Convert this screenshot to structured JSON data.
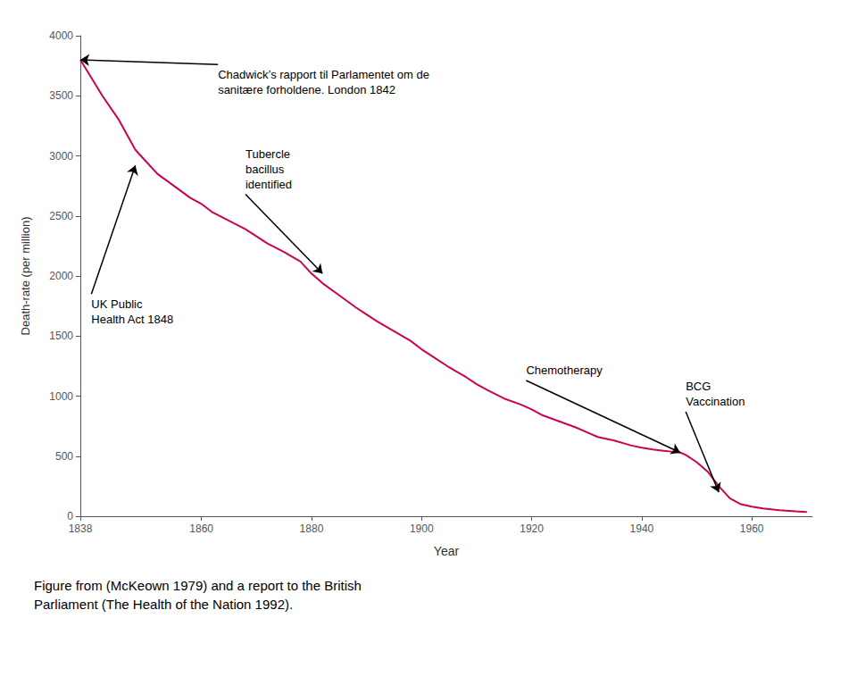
{
  "chart_data": {
    "type": "line",
    "xlabel": "Year",
    "ylabel": "Death-rate (per million)",
    "caption": "Figure from (McKeown 1979) and a report to the British\nParliament (The Health of the Nation 1992).",
    "color": "#cc0055",
    "grid": false,
    "xlim": [
      1838,
      1971
    ],
    "ylim": [
      0,
      4000
    ],
    "xticks": [
      1838,
      1860,
      1880,
      1900,
      1920,
      1940,
      1960
    ],
    "yticks": [
      0,
      500,
      1000,
      1500,
      2000,
      2500,
      3000,
      3500,
      4000
    ],
    "x": [
      1838,
      1840,
      1842,
      1845,
      1848,
      1850,
      1852,
      1855,
      1858,
      1860,
      1862,
      1865,
      1868,
      1870,
      1872,
      1875,
      1878,
      1880,
      1882,
      1885,
      1888,
      1890,
      1892,
      1895,
      1898,
      1900,
      1902,
      1905,
      1908,
      1910,
      1912,
      1915,
      1918,
      1920,
      1922,
      1925,
      1928,
      1930,
      1932,
      1935,
      1938,
      1940,
      1942,
      1944,
      1945,
      1947,
      1948,
      1950,
      1952,
      1954,
      1956,
      1958,
      1960,
      1962,
      1965,
      1968,
      1970
    ],
    "values": [
      3800,
      3650,
      3500,
      3300,
      3050,
      2950,
      2850,
      2750,
      2650,
      2600,
      2530,
      2460,
      2390,
      2330,
      2270,
      2200,
      2120,
      2020,
      1940,
      1840,
      1740,
      1680,
      1620,
      1540,
      1460,
      1390,
      1330,
      1240,
      1160,
      1100,
      1050,
      980,
      930,
      890,
      840,
      790,
      740,
      700,
      660,
      630,
      590,
      570,
      555,
      545,
      540,
      530,
      510,
      450,
      370,
      250,
      150,
      100,
      80,
      65,
      50,
      40,
      35
    ],
    "annotations": [
      {
        "text": "Chadwick’s rapport til Parlamentet om de\nsanitære forholdene. London 1842",
        "x": 1838,
        "y": 3800,
        "text_x": 1863,
        "text_y": 3760
      },
      {
        "text": "UK Public\nHealth Act 1848",
        "x": 1848,
        "y": 2920,
        "text_x": 1840,
        "text_y": 1850
      },
      {
        "text": "Tubercle\nbacillus\nidentified",
        "x": 1882,
        "y": 2020,
        "text_x": 1868,
        "text_y": 2680
      },
      {
        "text": "Chemotherapy",
        "x": 1947,
        "y": 530,
        "text_x": 1919,
        "text_y": 1130
      },
      {
        "text": "BCG\nVaccination",
        "x": 1954,
        "y": 200,
        "text_x": 1948,
        "text_y": 870
      }
    ]
  }
}
